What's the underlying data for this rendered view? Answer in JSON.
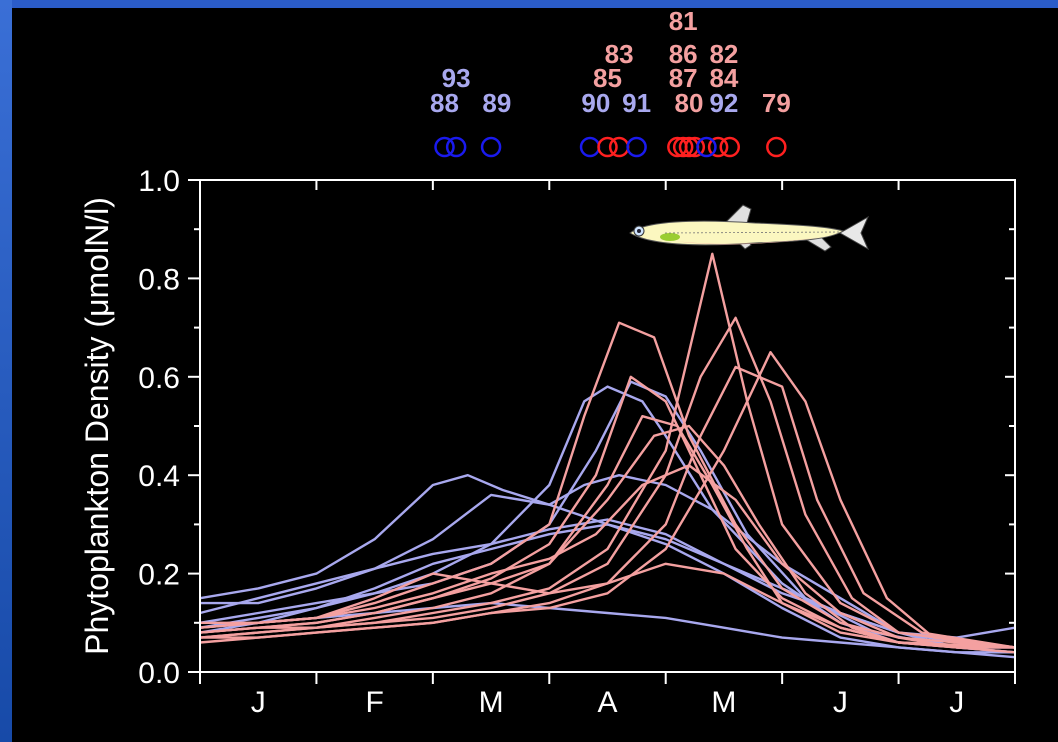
{
  "chart_data": {
    "type": "line",
    "ylabel": "Phytoplankton Density (μmolN/l)",
    "xlabel": "",
    "title": "",
    "ylim": [
      0,
      1.0
    ],
    "yticks": [
      "0.0",
      "0.2",
      "0.4",
      "0.6",
      "0.8",
      "1.0"
    ],
    "yticks_values": [
      0,
      0.2,
      0.4,
      0.6,
      0.8,
      1.0
    ],
    "xlim": [
      0,
      7
    ],
    "month_labels": [
      "J",
      "F",
      "M",
      "A",
      "M",
      "J",
      "J"
    ],
    "grid": false,
    "colors": {
      "cold": "#a8a8ee",
      "warm": "#f4a0a0",
      "cold_marker": "#1a1aee",
      "warm_marker": "#ff2020",
      "frame": "#ffffff"
    },
    "year_markers": [
      {
        "label": "88",
        "x": 2.1,
        "group": "cold"
      },
      {
        "label": "93",
        "x": 2.2,
        "group": "cold"
      },
      {
        "label": "89",
        "x": 2.5,
        "group": "cold"
      },
      {
        "label": "90",
        "x": 3.35,
        "group": "cold"
      },
      {
        "label": "85",
        "x": 3.5,
        "group": "warm"
      },
      {
        "label": "83",
        "x": 3.6,
        "group": "warm"
      },
      {
        "label": "91",
        "x": 3.75,
        "group": "cold"
      },
      {
        "label": "81",
        "x": 4.1,
        "group": "warm"
      },
      {
        "label": "86",
        "x": 4.15,
        "group": "warm"
      },
      {
        "label": "87",
        "x": 4.2,
        "group": "warm"
      },
      {
        "label": "80",
        "x": 4.25,
        "group": "warm"
      },
      {
        "label": "82",
        "x": 4.45,
        "group": "warm"
      },
      {
        "label": "84",
        "x": 4.55,
        "group": "warm"
      },
      {
        "label": "92",
        "x": 4.35,
        "group": "cold"
      },
      {
        "label": "79",
        "x": 4.95,
        "group": "warm"
      }
    ],
    "year_label_rows": [
      [
        {
          "text": "81",
          "x": 4.15,
          "group": "warm"
        }
      ],
      [
        {
          "text": "83",
          "x": 3.6,
          "group": "warm"
        },
        {
          "text": "86",
          "x": 4.15,
          "group": "warm"
        },
        {
          "text": "82",
          "x": 4.5,
          "group": "warm"
        }
      ],
      [
        {
          "text": "93",
          "x": 2.2,
          "group": "cold"
        },
        {
          "text": "85",
          "x": 3.5,
          "group": "warm"
        },
        {
          "text": "87",
          "x": 4.15,
          "group": "warm"
        },
        {
          "text": "84",
          "x": 4.5,
          "group": "warm"
        }
      ],
      [
        {
          "text": "88",
          "x": 2.1,
          "group": "cold"
        },
        {
          "text": "89",
          "x": 2.55,
          "group": "cold"
        },
        {
          "text": "90",
          "x": 3.4,
          "group": "cold"
        },
        {
          "text": "91",
          "x": 3.75,
          "group": "cold"
        },
        {
          "text": "80",
          "x": 4.2,
          "group": "warm"
        },
        {
          "text": "92",
          "x": 4.5,
          "group": "cold"
        },
        {
          "text": "79",
          "x": 4.95,
          "group": "warm"
        }
      ]
    ],
    "series": [
      {
        "group": "cold",
        "x": [
          0,
          0.5,
          1,
          1.5,
          2.0,
          2.3,
          2.6,
          3.0,
          3.5,
          4.0,
          4.5,
          5.0,
          5.5,
          6.0,
          6.5,
          7.0
        ],
        "values": [
          0.15,
          0.17,
          0.2,
          0.27,
          0.38,
          0.4,
          0.37,
          0.34,
          0.3,
          0.27,
          0.22,
          0.16,
          0.12,
          0.08,
          0.07,
          0.09
        ]
      },
      {
        "group": "cold",
        "x": [
          0,
          0.5,
          1,
          1.5,
          2.0,
          2.5,
          3.0,
          3.3,
          3.6,
          4.0,
          4.4,
          5.0,
          5.5,
          6.0,
          6.5,
          7.0
        ],
        "values": [
          0.14,
          0.14,
          0.17,
          0.21,
          0.27,
          0.36,
          0.34,
          0.38,
          0.4,
          0.38,
          0.33,
          0.22,
          0.15,
          0.08,
          0.05,
          0.05
        ]
      },
      {
        "group": "cold",
        "x": [
          0,
          0.5,
          1,
          1.5,
          2.0,
          2.5,
          3.0,
          3.3,
          3.5,
          3.8,
          4.0,
          4.4,
          5.0,
          5.5,
          6.0,
          7.0
        ],
        "values": [
          0.1,
          0.12,
          0.14,
          0.16,
          0.2,
          0.26,
          0.38,
          0.55,
          0.58,
          0.55,
          0.48,
          0.33,
          0.18,
          0.1,
          0.06,
          0.04
        ]
      },
      {
        "group": "cold",
        "x": [
          0,
          0.5,
          1,
          1.5,
          2.0,
          2.5,
          3.0,
          3.4,
          3.7,
          4.0,
          4.3,
          4.7,
          5.2,
          5.8,
          6.5,
          7.0
        ],
        "values": [
          0.09,
          0.11,
          0.13,
          0.16,
          0.18,
          0.22,
          0.3,
          0.45,
          0.59,
          0.56,
          0.45,
          0.28,
          0.15,
          0.08,
          0.05,
          0.04
        ]
      },
      {
        "group": "cold",
        "x": [
          0,
          0.5,
          1,
          1.5,
          2.0,
          2.5,
          3.0,
          3.5,
          4.0,
          4.5,
          5.0,
          5.5,
          6.0,
          6.5,
          7.0
        ],
        "values": [
          0.12,
          0.15,
          0.18,
          0.21,
          0.24,
          0.26,
          0.29,
          0.31,
          0.28,
          0.22,
          0.17,
          0.12,
          0.08,
          0.06,
          0.05
        ]
      },
      {
        "group": "cold",
        "x": [
          0,
          0.5,
          1,
          1.5,
          2.0,
          2.5,
          3.0,
          3.5,
          4.0,
          4.5,
          5.0,
          5.5,
          6.0,
          6.5,
          7.0
        ],
        "values": [
          0.08,
          0.1,
          0.13,
          0.17,
          0.22,
          0.25,
          0.28,
          0.3,
          0.26,
          0.2,
          0.13,
          0.07,
          0.05,
          0.04,
          0.04
        ]
      },
      {
        "group": "cold",
        "x": [
          0,
          0.5,
          1,
          1.5,
          2.0,
          2.5,
          3.0,
          3.5,
          4.0,
          4.5,
          5.0,
          5.5,
          6.0,
          6.5,
          7.0
        ],
        "values": [
          0.09,
          0.1,
          0.11,
          0.12,
          0.13,
          0.14,
          0.13,
          0.12,
          0.11,
          0.09,
          0.07,
          0.06,
          0.05,
          0.04,
          0.03
        ]
      },
      {
        "group": "warm",
        "x": [
          0,
          0.5,
          1,
          1.5,
          2.0,
          2.5,
          3.0,
          3.3,
          3.6,
          3.9,
          4.2,
          4.6,
          5.0,
          5.5,
          6.0,
          7.0
        ],
        "values": [
          0.09,
          0.1,
          0.11,
          0.14,
          0.18,
          0.22,
          0.3,
          0.52,
          0.71,
          0.68,
          0.48,
          0.3,
          0.17,
          0.1,
          0.07,
          0.05
        ]
      },
      {
        "group": "warm",
        "x": [
          0,
          0.5,
          1,
          1.5,
          2.0,
          2.5,
          3.0,
          3.4,
          3.7,
          4.0,
          4.3,
          4.6,
          5.0,
          5.5,
          6.0,
          7.0
        ],
        "values": [
          0.08,
          0.09,
          0.1,
          0.12,
          0.15,
          0.19,
          0.26,
          0.4,
          0.6,
          0.55,
          0.4,
          0.25,
          0.15,
          0.09,
          0.06,
          0.05
        ]
      },
      {
        "group": "warm",
        "x": [
          0,
          0.5,
          1,
          1.5,
          2.0,
          2.5,
          3.0,
          3.5,
          3.8,
          4.1,
          4.4,
          4.7,
          5.0,
          5.5,
          6.0,
          7.0
        ],
        "values": [
          0.07,
          0.08,
          0.09,
          0.11,
          0.13,
          0.16,
          0.22,
          0.38,
          0.52,
          0.5,
          0.38,
          0.25,
          0.14,
          0.08,
          0.06,
          0.04
        ]
      },
      {
        "group": "warm",
        "x": [
          0,
          0.5,
          1,
          1.5,
          2.0,
          2.5,
          3.0,
          3.5,
          4.0,
          4.2,
          4.4,
          4.7,
          5.0,
          5.5,
          6.0,
          7.0
        ],
        "values": [
          0.08,
          0.09,
          0.09,
          0.1,
          0.12,
          0.14,
          0.17,
          0.25,
          0.45,
          0.65,
          0.85,
          0.55,
          0.3,
          0.14,
          0.08,
          0.05
        ]
      },
      {
        "group": "warm",
        "x": [
          0,
          0.5,
          1,
          1.5,
          2.0,
          2.5,
          3.0,
          3.5,
          4.0,
          4.3,
          4.6,
          4.9,
          5.2,
          5.6,
          6.0,
          7.0
        ],
        "values": [
          0.07,
          0.08,
          0.09,
          0.1,
          0.11,
          0.13,
          0.16,
          0.22,
          0.4,
          0.6,
          0.72,
          0.55,
          0.32,
          0.15,
          0.08,
          0.05
        ]
      },
      {
        "group": "warm",
        "x": [
          0,
          0.5,
          1,
          1.5,
          2.0,
          2.5,
          3.0,
          3.5,
          4.0,
          4.3,
          4.6,
          5.0,
          5.3,
          5.7,
          6.2,
          7.0
        ],
        "values": [
          0.06,
          0.07,
          0.08,
          0.09,
          0.1,
          0.12,
          0.14,
          0.18,
          0.3,
          0.48,
          0.62,
          0.58,
          0.35,
          0.16,
          0.08,
          0.05
        ]
      },
      {
        "group": "warm",
        "x": [
          0,
          0.5,
          1,
          1.5,
          2.0,
          2.5,
          3.0,
          3.5,
          4.0,
          4.5,
          4.9,
          5.2,
          5.5,
          5.9,
          6.3,
          7.0
        ],
        "values": [
          0.07,
          0.07,
          0.08,
          0.09,
          0.1,
          0.12,
          0.13,
          0.16,
          0.25,
          0.45,
          0.65,
          0.55,
          0.35,
          0.15,
          0.07,
          0.05
        ]
      },
      {
        "group": "warm",
        "x": [
          0,
          0.5,
          1,
          1.5,
          2.0,
          2.5,
          3.0,
          3.5,
          3.9,
          4.2,
          4.5,
          4.8,
          5.2,
          5.6,
          6.0,
          7.0
        ],
        "values": [
          0.08,
          0.09,
          0.1,
          0.12,
          0.15,
          0.18,
          0.22,
          0.35,
          0.48,
          0.5,
          0.42,
          0.3,
          0.16,
          0.09,
          0.06,
          0.05
        ]
      },
      {
        "group": "warm",
        "x": [
          0,
          0.5,
          1,
          1.5,
          2.0,
          2.5,
          3.0,
          3.5,
          4.0,
          4.5,
          5.0,
          5.5,
          6.0,
          6.5,
          7.0
        ],
        "values": [
          0.09,
          0.1,
          0.11,
          0.15,
          0.2,
          0.18,
          0.16,
          0.18,
          0.22,
          0.2,
          0.14,
          0.09,
          0.06,
          0.05,
          0.05
        ]
      },
      {
        "group": "warm",
        "x": [
          0,
          0.5,
          1,
          1.5,
          2.0,
          2.5,
          3.0,
          3.4,
          3.8,
          4.2,
          4.6,
          5.0,
          5.5,
          6.0,
          6.5,
          7.0
        ],
        "values": [
          0.1,
          0.1,
          0.11,
          0.13,
          0.16,
          0.2,
          0.23,
          0.28,
          0.38,
          0.42,
          0.35,
          0.22,
          0.12,
          0.07,
          0.05,
          0.05
        ]
      }
    ]
  }
}
